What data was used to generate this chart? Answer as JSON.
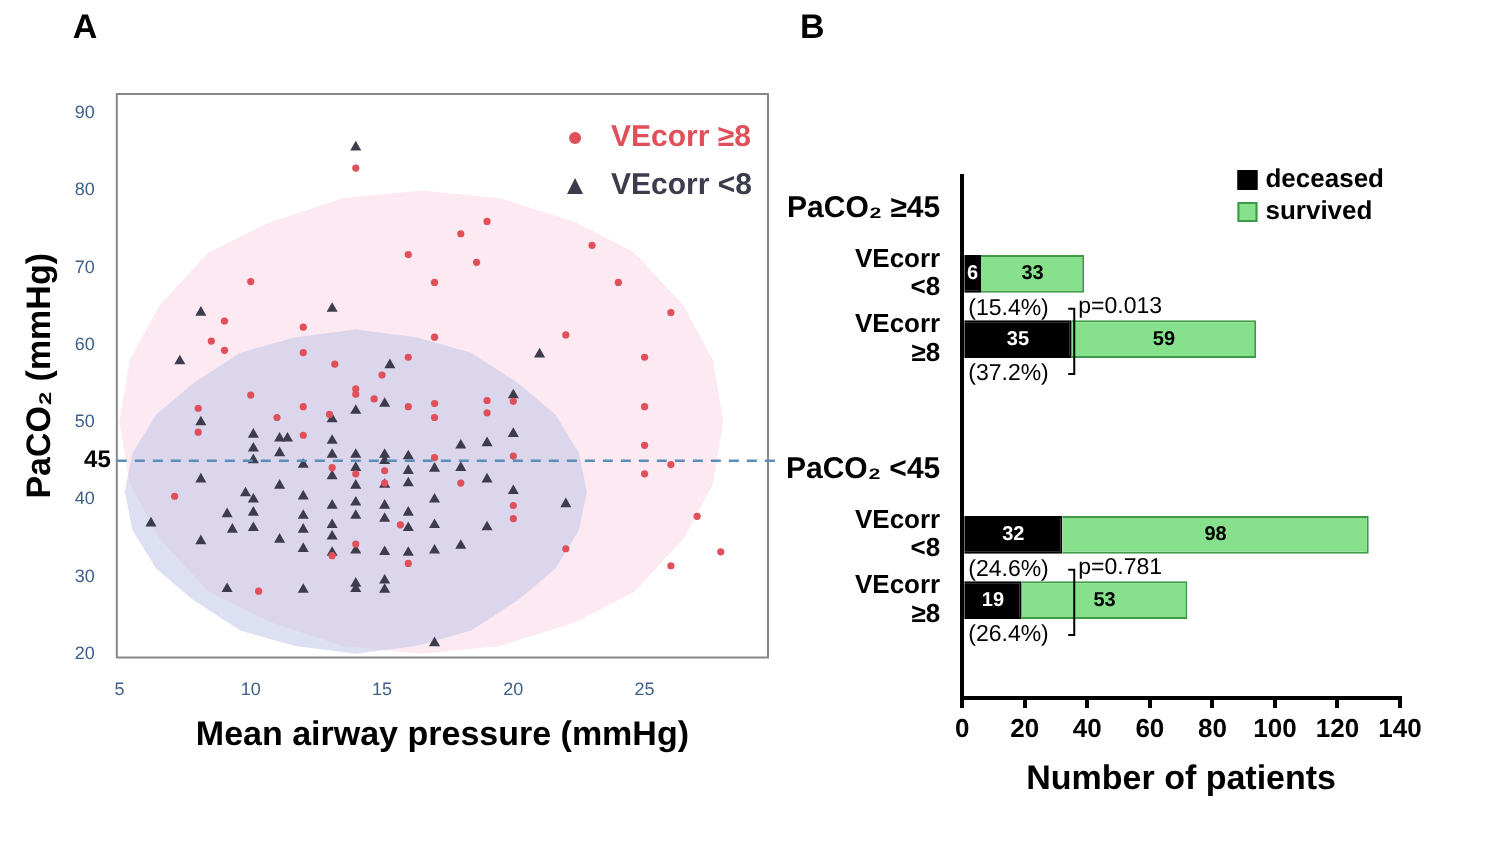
{
  "chart_data": [
    {
      "type": "scatter",
      "title": "A",
      "xlabel": "Mean airway pressure (mmHg)",
      "ylabel": "PaCO₂ (mmHg)",
      "xlim": [
        4.9,
        29.7
      ],
      "ylim": [
        19.5,
        92.5
      ],
      "xticks": [
        5,
        10,
        15,
        20,
        25
      ],
      "yticks": [
        20,
        30,
        40,
        50,
        60,
        70,
        80,
        90
      ],
      "legend": "top right",
      "series": [
        {
          "name": "VEcorr ≥8",
          "color": "#e0505a",
          "marker": "circle",
          "x": [
            14,
            19,
            18,
            16,
            18.6,
            23,
            24,
            10,
            17,
            26,
            9,
            8.5,
            9,
            12,
            17,
            22,
            25,
            12,
            13.2,
            16,
            10,
            14,
            14,
            15,
            14.7,
            17,
            19,
            20,
            12,
            11,
            8,
            16,
            17,
            19,
            25,
            13,
            7.1,
            10.3,
            12,
            14,
            15.1,
            15.7,
            16,
            17,
            18,
            20,
            20,
            20,
            22,
            25,
            25,
            26,
            26,
            27,
            13.1,
            14,
            15.1,
            13.1,
            27.9,
            8
          ],
          "values": [
            82.9,
            76,
            74.4,
            71.7,
            70.7,
            72.9,
            68.1,
            68.2,
            68.1,
            64.2,
            63.1,
            60.5,
            59.3,
            62.3,
            61,
            61.3,
            58.4,
            59,
            57.5,
            58.4,
            53.5,
            54.3,
            53.6,
            56.1,
            53,
            52.4,
            52.8,
            52.7,
            52,
            50.6,
            51.8,
            52,
            50.6,
            51.2,
            52,
            51,
            40.4,
            28.1,
            48.3,
            43.3,
            42.1,
            36.7,
            31.7,
            45.4,
            42.1,
            45.6,
            39.2,
            37.5,
            33.6,
            47,
            43.3,
            44.5,
            31.4,
            37.8,
            32.7,
            34.2,
            43.7,
            44.1,
            33.2,
            48.7
          ]
        },
        {
          "name": "VEcorr <8",
          "color": "#3c3c4c",
          "marker": "triangle",
          "x": [
            14,
            8.1,
            13.1,
            7.3,
            15.3,
            21,
            20,
            15.1,
            14,
            13.1,
            8.1,
            10.1,
            11.1,
            11.4,
            13.1,
            10.1,
            11.1,
            13.1,
            14,
            15.1,
            16,
            18,
            19,
            20,
            10.1,
            12,
            14,
            15.1,
            16,
            17,
            18,
            8.1,
            19,
            11.1,
            13.1,
            14,
            15.1,
            16,
            9.8,
            10.1,
            12,
            13.1,
            14,
            15.1,
            17,
            20,
            22,
            6.2,
            9.1,
            9.3,
            10.1,
            10.1,
            12,
            12,
            13.1,
            14,
            15.1,
            16,
            16,
            17,
            19,
            8.1,
            11.1,
            12,
            13.1,
            14,
            15.1,
            16,
            17,
            18,
            9.1,
            12,
            14,
            14,
            15.1,
            15.1,
            17,
            13.1
          ],
          "values": [
            85.6,
            64.2,
            64.7,
            57.9,
            57.4,
            58.8,
            53.5,
            52.4,
            51.5,
            50.4,
            50,
            48.4,
            47.9,
            47.9,
            47.6,
            46.6,
            46,
            45.8,
            45.8,
            45.8,
            45.6,
            47,
            47.3,
            48.5,
            45.1,
            44.5,
            44.1,
            45,
            43.7,
            44,
            44.1,
            42.6,
            42.6,
            41.8,
            43,
            41.8,
            41.9,
            42.1,
            40.8,
            40,
            40.4,
            39.2,
            39.6,
            39.2,
            40,
            41.1,
            39.4,
            36.9,
            38.1,
            36.1,
            38.3,
            36.3,
            37.9,
            36.1,
            36.7,
            37.9,
            37.5,
            38.3,
            36.3,
            36.7,
            36.4,
            34.6,
            34.8,
            33.6,
            33.1,
            33.4,
            33.2,
            33.1,
            33.4,
            34,
            28.4,
            28.3,
            29.1,
            28.4,
            29.5,
            28.3,
            21.4,
            35.2
          ]
        },
        {
          "type": "area",
          "color": "#fbd7e6",
          "marker": "none",
          "x": [
            28,
            27.6,
            26.5,
            24.6,
            22.3,
            19.5,
            16.5,
            13.5,
            10.8,
            8.4,
            6.5,
            5.4,
            5,
            5.4,
            6.5,
            8.4,
            10.8,
            13.5,
            16.5,
            19.5,
            22.3,
            24.6,
            26.5,
            27.6,
            28
          ],
          "values": [
            50,
            58,
            65,
            72,
            76,
            79,
            80,
            79,
            76,
            72,
            65,
            58,
            50,
            42,
            35,
            28,
            24,
            21,
            20,
            21,
            24,
            28,
            35,
            42,
            50
          ]
        },
        {
          "type": "area",
          "color": "#c1c7e7",
          "marker": "none",
          "x": [
            22.8,
            22.5,
            21.6,
            20.2,
            18.4,
            16.3,
            14,
            11.7,
            9.6,
            7.8,
            6.4,
            5.5,
            5.2,
            5.5,
            6.4,
            7.8,
            9.6,
            11.7,
            14,
            16.3,
            18.4,
            20.2,
            21.6,
            22.5,
            22.8
          ],
          "values": [
            41,
            46,
            51,
            55,
            59,
            61,
            62,
            61,
            59,
            55,
            51,
            46,
            41,
            36,
            31,
            27,
            23,
            21,
            20,
            21,
            23,
            27,
            31,
            36,
            41
          ]
        }
      ],
      "ref_lines": [
        {
          "axis": "y",
          "value": 45,
          "label": "45",
          "color": "#5b8db8",
          "line_style": "dashed"
        }
      ]
    },
    {
      "type": "bar",
      "title": "B",
      "orientation": "horizontal",
      "stacked": true,
      "xlabel": "Number of patients",
      "categories": [
        "PaCO₂ ≥45",
        "VEcorr <8",
        "VEcorr ≥8",
        null,
        "PaCO₂ <45",
        "VEcorr <8",
        "VEcorr ≥8",
        null
      ],
      "series": [
        {
          "name": "deceased",
          "color": "#000000",
          "values": [
            null,
            6,
            35,
            null,
            null,
            32,
            19,
            null
          ]
        },
        {
          "name": "survived",
          "color": "#86e08c",
          "values": [
            null,
            33,
            59,
            null,
            null,
            98,
            53,
            null
          ]
        }
      ],
      "xlim": [
        0,
        140
      ],
      "xticks": [
        0,
        20,
        40,
        60,
        80,
        100,
        120,
        140
      ],
      "data_labels": true,
      "legend": "top right",
      "annotations": [
        "(15.4%)",
        "(37.2%)",
        "(24.6%)",
        "(26.4%)",
        "p=0.013",
        "p=0.781"
      ]
    }
  ]
}
